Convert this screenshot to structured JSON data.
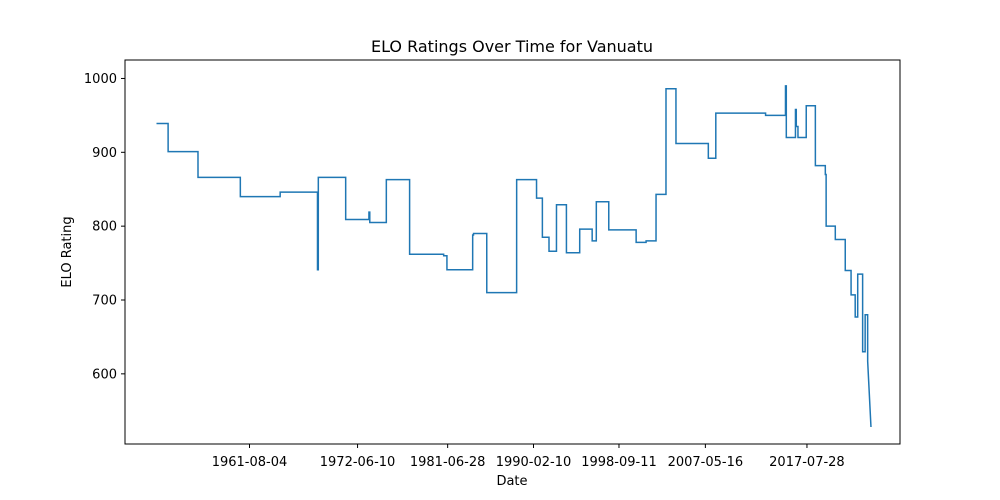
{
  "chart_data": {
    "type": "line",
    "title": "ELO Ratings Over Time for Vanuatu",
    "xlabel": "Date",
    "ylabel": "ELO Rating",
    "x_tick_labels": [
      "1961-08-04",
      "1972-06-10",
      "1981-06-28",
      "1990-02-10",
      "1998-09-11",
      "2007-05-16",
      "2017-07-28"
    ],
    "y_ticks": [
      600,
      700,
      800,
      900,
      1000
    ],
    "xlim": [
      "1949-02-01",
      "2026-12-01"
    ],
    "ylim": [
      505,
      1025
    ],
    "grid": false,
    "line_color": "#1f77b4",
    "series": [
      {
        "x": [
          "1952-04-01",
          "1953-06-01",
          "1953-06-02",
          "1956-06-01",
          "1956-06-02",
          "1960-09-01",
          "1960-09-02",
          "1964-09-01",
          "1964-09-02",
          "1968-06-01",
          "1968-06-02",
          "1968-07-01",
          "1968-07-02",
          "1968-07-03",
          "1971-04-01",
          "1971-04-02",
          "1971-04-03",
          "1971-04-04",
          "1973-08-01",
          "1973-08-02",
          "1973-09-01",
          "1973-09-02",
          "1975-05-01",
          "1975-05-02",
          "1977-09-01",
          "1977-09-02",
          "1977-09-03",
          "1981-02-01",
          "1981-02-02",
          "1981-03-01",
          "1981-03-02",
          "1981-06-01",
          "1981-06-02",
          "1981-08-01",
          "1981-08-02",
          "1984-01-01",
          "1984-01-02",
          "1984-02-01",
          "1984-02-02",
          "1985-06-01",
          "1985-06-02",
          "1988-06-01",
          "1988-06-02",
          "1990-06-01",
          "1990-06-02",
          "1991-01-01",
          "1991-01-02",
          "1991-09-01",
          "1991-09-02",
          "1992-06-01",
          "1992-06-02",
          "1993-06-01",
          "1993-06-02",
          "1994-10-01",
          "1994-10-02",
          "1996-01-01",
          "1996-01-02",
          "1996-06-01",
          "1996-06-02",
          "1997-09-01",
          "1997-09-02",
          "2000-06-01",
          "2000-06-02",
          "2001-06-01",
          "2001-06-02",
          "2002-06-01",
          "2002-06-02",
          "2003-06-01",
          "2003-06-02",
          "2004-06-01",
          "2004-06-02",
          "2007-09-01",
          "2007-09-02",
          "2008-06-01",
          "2008-06-02",
          "2013-06-01",
          "2013-06-02",
          "2015-06-01",
          "2015-06-02",
          "2015-07-01",
          "2015-07-02",
          "2016-06-01",
          "2016-06-02",
          "2016-07-01",
          "2016-07-02",
          "2016-09-01",
          "2016-09-02",
          "2017-07-01",
          "2017-07-02",
          "2018-06-01",
          "2018-06-02",
          "2019-06-01",
          "2019-06-02",
          "2019-07-01",
          "2019-07-02",
          "2020-06-01",
          "2020-06-02",
          "2021-06-01",
          "2021-06-02",
          "2022-01-01",
          "2022-01-02",
          "2022-06-01",
          "2022-06-02",
          "2022-09-01",
          "2022-09-02",
          "2023-03-01",
          "2023-03-02",
          "2023-06-01",
          "2023-06-02",
          "2023-09-01",
          "2023-09-02",
          "2024-01-01"
        ],
        "y": [
          939,
          939,
          901,
          901,
          866,
          866,
          840,
          840,
          846,
          846,
          741,
          741,
          866,
          866,
          866,
          809,
          809,
          809,
          809,
          819,
          819,
          805,
          805,
          863,
          863,
          762,
          762,
          762,
          760,
          760,
          760,
          760,
          741,
          741,
          741,
          741,
          788,
          788,
          790,
          790,
          710,
          710,
          863,
          863,
          838,
          838,
          785,
          785,
          766,
          766,
          829,
          829,
          764,
          764,
          796,
          796,
          780,
          780,
          833,
          833,
          795,
          795,
          778,
          778,
          780,
          780,
          843,
          843,
          986,
          986,
          912,
          912,
          892,
          892,
          953,
          953,
          950,
          950,
          990,
          990,
          920,
          920,
          958,
          958,
          935,
          935,
          920,
          920,
          963,
          963,
          882,
          882,
          870,
          870,
          800,
          800,
          782,
          782,
          740,
          740,
          707,
          707,
          677,
          677,
          735,
          735,
          630,
          630,
          680,
          680,
          617,
          528
        ]
      }
    ]
  }
}
